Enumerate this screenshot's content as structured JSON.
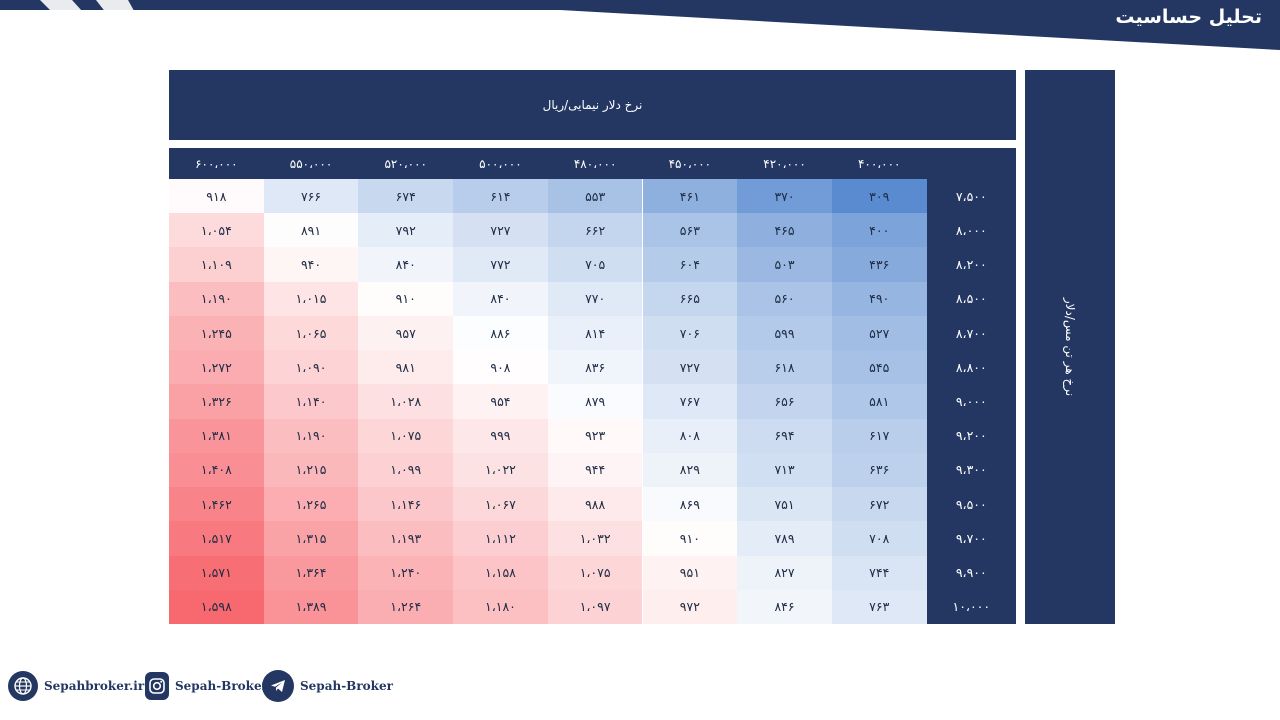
{
  "header": {
    "title": "تحلیل حساسیت"
  },
  "table": {
    "column_axis_label": "نرخ دلار نیمایی/ریال",
    "row_axis_label": "نرخ هر تن مس/دلار",
    "column_headers": [
      "۶۰۰،۰۰۰",
      "۵۵۰،۰۰۰",
      "۵۲۰،۰۰۰",
      "۵۰۰،۰۰۰",
      "۴۸۰،۰۰۰",
      "۴۵۰،۰۰۰",
      "۴۲۰،۰۰۰",
      "۴۰۰،۰۰۰"
    ],
    "row_headers": [
      "۷،۵۰۰",
      "۸،۰۰۰",
      "۸،۲۰۰",
      "۸،۵۰۰",
      "۸،۷۰۰",
      "۸،۸۰۰",
      "۹،۰۰۰",
      "۹،۲۰۰",
      "۹،۳۰۰",
      "۹،۵۰۰",
      "۹،۷۰۰",
      "۹،۹۰۰",
      "۱۰،۰۰۰"
    ],
    "rows": [
      [
        "۹۱۸",
        "۷۶۶",
        "۶۷۴",
        "۶۱۴",
        "۵۵۳",
        "۴۶۱",
        "۳۷۰",
        "۳۰۹"
      ],
      [
        "۱،۰۵۴",
        "۸۹۱",
        "۷۹۲",
        "۷۲۷",
        "۶۶۲",
        "۵۶۳",
        "۴۶۵",
        "۴۰۰"
      ],
      [
        "۱،۱۰۹",
        "۹۴۰",
        "۸۴۰",
        "۷۷۲",
        "۷۰۵",
        "۶۰۴",
        "۵۰۳",
        "۴۳۶"
      ],
      [
        "۱،۱۹۰",
        "۱،۰۱۵",
        "۹۱۰",
        "۸۴۰",
        "۷۷۰",
        "۶۶۵",
        "۵۶۰",
        "۴۹۰"
      ],
      [
        "۱،۲۴۵",
        "۱،۰۶۵",
        "۹۵۷",
        "۸۸۶",
        "۸۱۴",
        "۷۰۶",
        "۵۹۹",
        "۵۲۷"
      ],
      [
        "۱،۲۷۲",
        "۱،۰۹۰",
        "۹۸۱",
        "۹۰۸",
        "۸۳۶",
        "۷۲۷",
        "۶۱۸",
        "۵۴۵"
      ],
      [
        "۱،۳۲۶",
        "۱،۱۴۰",
        "۱،۰۲۸",
        "۹۵۴",
        "۸۷۹",
        "۷۶۷",
        "۶۵۶",
        "۵۸۱"
      ],
      [
        "۱،۳۸۱",
        "۱،۱۹۰",
        "۱،۰۷۵",
        "۹۹۹",
        "۹۲۳",
        "۸۰۸",
        "۶۹۴",
        "۶۱۷"
      ],
      [
        "۱،۴۰۸",
        "۱،۲۱۵",
        "۱،۰۹۹",
        "۱،۰۲۲",
        "۹۴۴",
        "۸۲۹",
        "۷۱۳",
        "۶۳۶"
      ],
      [
        "۱،۴۶۲",
        "۱،۲۶۵",
        "۱،۱۴۶",
        "۱،۰۶۷",
        "۹۸۸",
        "۸۶۹",
        "۷۵۱",
        "۶۷۲"
      ],
      [
        "۱،۵۱۷",
        "۱،۳۱۵",
        "۱،۱۹۳",
        "۱،۱۱۲",
        "۱،۰۳۲",
        "۹۱۰",
        "۷۸۹",
        "۷۰۸"
      ],
      [
        "۱،۵۷۱",
        "۱،۳۶۴",
        "۱،۲۴۰",
        "۱،۱۵۸",
        "۱،۰۷۵",
        "۹۵۱",
        "۸۲۷",
        "۷۴۴"
      ],
      [
        "۱،۵۹۸",
        "۱،۳۸۹",
        "۱،۲۶۴",
        "۱،۱۸۰",
        "۱،۰۹۷",
        "۹۷۲",
        "۸۴۶",
        "۷۶۳"
      ]
    ],
    "heat_colors": {
      "low": "#5a8bd0",
      "mid": "#ffffff",
      "high": "#f7686f"
    }
  },
  "footer": {
    "website": "Sepahbroker.ir",
    "instagram": "Sepah-Broker",
    "telegram": "Sepah-Broker"
  },
  "colors": {
    "navy": "#233762"
  }
}
